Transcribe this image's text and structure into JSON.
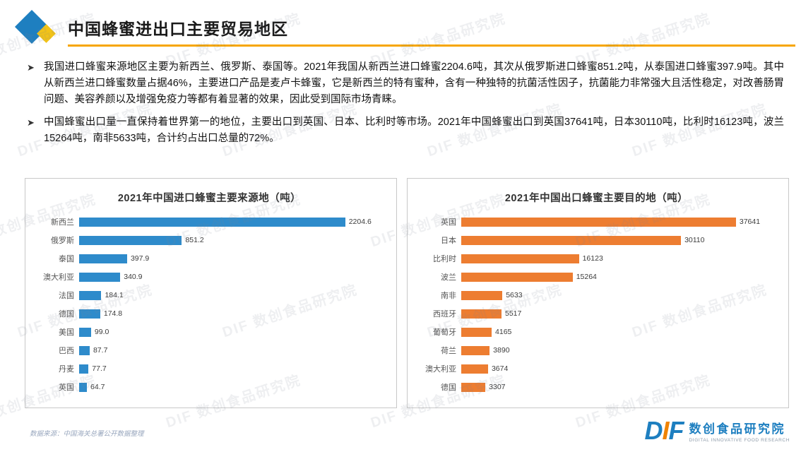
{
  "page": {
    "title": "中国蜂蜜进出口主要贸易地区",
    "watermark": "DIF 数创食品研究院"
  },
  "bullets": [
    "我国进口蜂蜜来源地区主要为新西兰、俄罗斯、泰国等。2021年我国从新西兰进口蜂蜜2204.6吨，其次从俄罗斯进口蜂蜜851.2吨，从泰国进口蜂蜜397.9吨。其中从新西兰进口蜂蜜数量占据46%，主要进口产品是麦卢卡蜂蜜，它是新西兰的特有蜜种，含有一种独特的抗菌活性因子，抗菌能力非常强大且活性稳定，对改善肠胃问题、美容养颜以及增强免疫力等都有着显著的效果，因此受到国际市场青睐。",
    "中国蜂蜜出口量一直保持着世界第一的地位，主要出口到英国、日本、比利时等市场。2021年中国蜂蜜出口到英国37641吨，日本30110吨，比利时16123吨，波兰15264吨，南非5633吨，合计约占出口总量的72%。"
  ],
  "chart_data": [
    {
      "type": "bar",
      "orientation": "horizontal",
      "title": "2021年中国进口蜂蜜主要来源地（吨）",
      "categories": [
        "新西兰",
        "俄罗斯",
        "泰国",
        "澳大利亚",
        "法国",
        "德国",
        "美国",
        "巴西",
        "丹麦",
        "英国"
      ],
      "values": [
        2204.6,
        851.2,
        397.9,
        340.9,
        184.1,
        174.8,
        99.0,
        87.7,
        77.7,
        64.7
      ],
      "value_labels": [
        "2204.6",
        "851.2",
        "397.9",
        "340.9",
        "184.1",
        "174.8",
        "99.0",
        "87.7",
        "77.7",
        "64.7"
      ],
      "bar_color": "#2E8BCB",
      "xlim": [
        0,
        2400
      ],
      "grid": false,
      "legend": false
    },
    {
      "type": "bar",
      "orientation": "horizontal",
      "title": "2021年中国出口蜂蜜主要目的地（吨）",
      "categories": [
        "英国",
        "日本",
        "比利时",
        "波兰",
        "南非",
        "西班牙",
        "葡萄牙",
        "荷兰",
        "澳大利亚",
        "德国"
      ],
      "values": [
        37641,
        30110,
        16123,
        15264,
        5633,
        5517,
        4165,
        3890,
        3674,
        3307
      ],
      "value_labels": [
        "37641",
        "30110",
        "16123",
        "15264",
        "5633",
        "5517",
        "4165",
        "3890",
        "3674",
        "3307"
      ],
      "bar_color": "#ED7D31",
      "xlim": [
        0,
        40000
      ],
      "grid": false,
      "legend": false
    }
  ],
  "footer": {
    "source": "数据来源：中国海关总署公开数据整理",
    "logo_letters": [
      "D",
      "I",
      "F"
    ],
    "logo_name": "数创食品研究院",
    "logo_caption": "DIGITAL INNOVATIVE FOOD RESEARCH"
  },
  "colors": {
    "import_bar": "#2E8BCB",
    "export_bar": "#ED7D31",
    "title_underline": "#F7A600",
    "logo_blue": "#1E7FC0",
    "logo_yellow": "#F2C318",
    "logo_orange": "#F08300"
  }
}
